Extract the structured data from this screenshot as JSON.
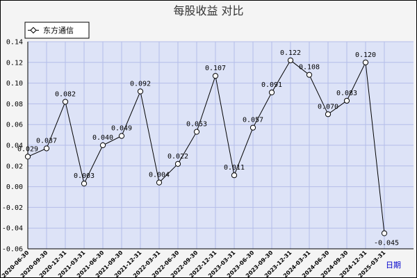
{
  "chart_data": {
    "type": "line",
    "title": "每股收益  对比",
    "xlabel": "日期",
    "ylabel": "",
    "ylim": [
      -0.06,
      0.14
    ],
    "ytick_step": 0.02,
    "grid": true,
    "legend_position": "top-left",
    "categories": [
      "2020-06-30",
      "2020-09-30",
      "2020-12-31",
      "2021-03-31",
      "2021-06-30",
      "2021-09-30",
      "2021-12-31",
      "2022-03-31",
      "2022-06-30",
      "2022-09-30",
      "2022-12-31",
      "2023-03-31",
      "2023-06-30",
      "2023-09-30",
      "2023-12-31",
      "2024-03-31",
      "2024-06-30",
      "2024-09-30",
      "2024-12-31",
      "2025-03-31"
    ],
    "series": [
      {
        "name": "东方通信",
        "values": [
          0.029,
          0.037,
          0.082,
          0.003,
          0.04,
          0.049,
          0.092,
          0.004,
          0.022,
          0.053,
          0.107,
          0.011,
          0.057,
          0.091,
          0.122,
          0.108,
          0.07,
          0.083,
          0.12,
          -0.045
        ],
        "labels": [
          "0.029",
          "0.037",
          "0.082",
          "0.003",
          "0.040",
          "0.049",
          "0.092",
          "0.004",
          "0.022",
          "0.053",
          "0.107",
          "0.011",
          "0.057",
          "0.091",
          "0.122",
          "0.108",
          "0.070",
          "0.083",
          "0.120",
          "-0.045"
        ]
      }
    ],
    "colors": {
      "plot_bg": "#dde3f7",
      "grid": "#b4bde8",
      "line": "#000000",
      "marker_fill": "#ffffff"
    }
  }
}
